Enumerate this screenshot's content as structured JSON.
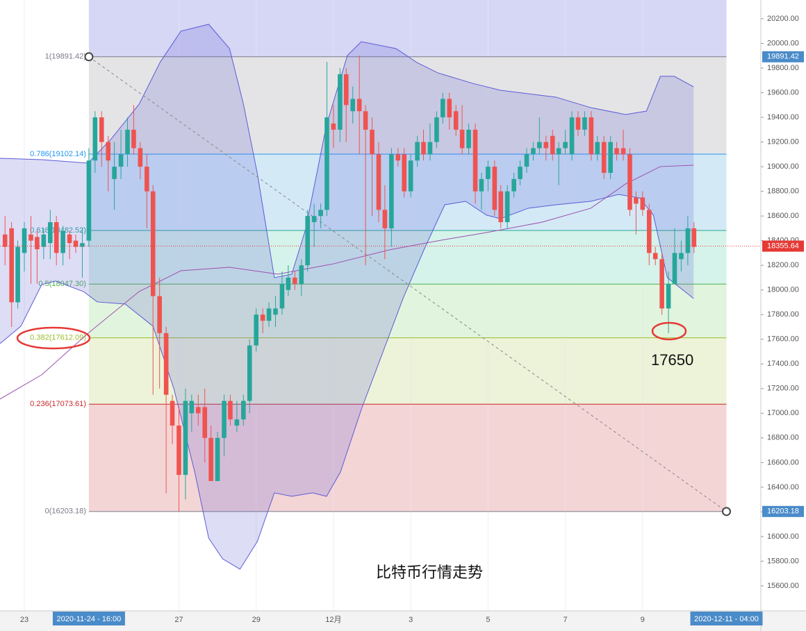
{
  "chart_data": {
    "type": "candlestick",
    "title": "比特币行情走势",
    "annotations": [
      {
        "text": "17650"
      }
    ],
    "xlim": [
      22.37,
      42.06
    ],
    "ylim": [
      15397,
      20352
    ],
    "grid": true,
    "up_color": "#26a69a",
    "down_color": "#ef5350",
    "xticks": [
      {
        "value": 23,
        "label": "23"
      },
      {
        "value": 27,
        "label": "27"
      },
      {
        "value": 29,
        "label": "29"
      },
      {
        "value": 31,
        "label": "12月"
      },
      {
        "value": 33,
        "label": "3"
      },
      {
        "value": 35,
        "label": "5"
      },
      {
        "value": 37,
        "label": "7"
      },
      {
        "value": 39,
        "label": "9"
      }
    ],
    "yticks": [
      {
        "value": 15600,
        "label": "15600.00"
      },
      {
        "value": 15800,
        "label": "15800.00"
      },
      {
        "value": 16000,
        "label": "16000.00"
      },
      {
        "value": 16200,
        "label": "16200.00"
      },
      {
        "value": 16400,
        "label": "16400.00"
      },
      {
        "value": 16600,
        "label": "16600.00"
      },
      {
        "value": 16800,
        "label": "16800.00"
      },
      {
        "value": 17000,
        "label": "17000.00"
      },
      {
        "value": 17200,
        "label": "17200.00"
      },
      {
        "value": 17400,
        "label": "17400.00"
      },
      {
        "value": 17600,
        "label": "17600.00"
      },
      {
        "value": 17800,
        "label": "17800.00"
      },
      {
        "value": 18000,
        "label": "18000.00"
      },
      {
        "value": 18200,
        "label": "18200.00"
      },
      {
        "value": 18400,
        "label": "18400.00"
      },
      {
        "value": 18600,
        "label": "18600.00"
      },
      {
        "value": 18800,
        "label": "18800.00"
      },
      {
        "value": 19000,
        "label": "19000.00"
      },
      {
        "value": 19200,
        "label": "19200.00"
      },
      {
        "value": 19400,
        "label": "19400.00"
      },
      {
        "value": 19600,
        "label": "19600.00"
      },
      {
        "value": 19800,
        "label": "19800.00"
      },
      {
        "value": 20000,
        "label": "20000.00"
      },
      {
        "value": 20200,
        "label": "20200.00"
      }
    ],
    "time_labels": [
      {
        "value": 24.67,
        "label": "2020-11-24 - 16:00"
      },
      {
        "value": 41.17,
        "label": "2020-12-11 - 04:00"
      }
    ],
    "price_labels": [
      {
        "value": 19891.42,
        "label": "19891.42",
        "color": "#4a8bc9"
      },
      {
        "value": 18355.64,
        "label": "18355.64",
        "color": "#e53935"
      },
      {
        "value": 16203.18,
        "label": "16203.18",
        "color": "#4a8bc9"
      }
    ],
    "current_price": 18355.64,
    "fib": {
      "x": [
        24.67,
        41.17
      ],
      "levels": [
        {
          "price": 19891.42,
          "label": "1(19891.42)",
          "color": "#787b86",
          "fill": "#d6d6f5"
        },
        {
          "price": 19102.14,
          "label": "0.786(19102.14)",
          "color": "#2196f3",
          "fill": "#e4e4e6"
        },
        {
          "price": 18482.52,
          "label": "0.618(18482.52)",
          "color": "#26a69a",
          "fill": "#d3e9f6"
        },
        {
          "price": 18047.3,
          "label": "0.5(18047.30)",
          "color": "#4caf50",
          "fill": "#d5f3ea"
        },
        {
          "price": 17612.09,
          "label": "0.382(17612.09)",
          "color": "#9bbc2a",
          "fill": "#e1f4dd"
        },
        {
          "price": 17073.61,
          "label": "0.236(17073.61)",
          "color": "#c62828",
          "fill": "#ecf3d8"
        },
        {
          "price": 16203.18,
          "label": "0(16203.18)",
          "color": "#787b86",
          "fill": "#f4d5d6"
        }
      ]
    },
    "bands": [
      {
        "color": "#5b5bd6",
        "x": [
          22.37,
          23.45,
          24.65,
          25.25,
          25.97,
          26.51,
          27.05,
          27.77,
          28.31,
          28.67,
          29.03,
          29.47,
          29.92,
          30.28,
          30.82,
          31.36,
          31.72,
          32.62,
          33.16,
          33.7,
          34.6,
          35.32,
          36.76,
          37.66,
          38.56,
          39.1,
          39.46,
          39.82,
          40.32
        ],
        "values": [
          19068,
          19057,
          19029,
          19226,
          19507,
          19845,
          20099,
          20155,
          19958,
          19507,
          18944,
          18100,
          18128,
          18494,
          19339,
          19902,
          20014,
          19958,
          19845,
          19761,
          19676,
          19620,
          19564,
          19479,
          19423,
          19451,
          19733,
          19733,
          19648
        ]
      },
      {
        "color": "#5b5bd6",
        "x": [
          22.37,
          22.91,
          23.45,
          23.81,
          24.53,
          24.89,
          25.61,
          26.33,
          26.87,
          27.41,
          27.77,
          28.13,
          28.58,
          29.03,
          29.47,
          29.92,
          30.46,
          30.82,
          31.18,
          31.72,
          32.26,
          32.8,
          33.34,
          33.88,
          34.42,
          34.96,
          35.32,
          36.04,
          36.76,
          37.66,
          38.38,
          38.92,
          39.28,
          39.64,
          40.32
        ],
        "values": [
          17565,
          17706,
          18044,
          18072,
          17987,
          17903,
          17886,
          17706,
          17199,
          16523,
          15988,
          15819,
          15735,
          15960,
          16354,
          16326,
          16354,
          16326,
          16523,
          17030,
          17480,
          17931,
          18325,
          18691,
          18719,
          18607,
          18578,
          18663,
          18691,
          18719,
          18775,
          18747,
          18607,
          18100,
          17931
        ]
      }
    ],
    "lines": [
      {
        "color": "#9c4fb0",
        "x": [
          22.37,
          23.45,
          24.65,
          25.97,
          27.05,
          28.31,
          29.56,
          31.0,
          32.44,
          33.88,
          34.96,
          36.4,
          37.66,
          38.56,
          39.46,
          40.32
        ],
        "values": [
          17115,
          17312,
          17649,
          17987,
          18156,
          18184,
          18128,
          18212,
          18325,
          18409,
          18466,
          18550,
          18663,
          18860,
          19001,
          19012
        ]
      }
    ],
    "x": [
      22.5,
      22.67,
      22.83,
      23,
      23.17,
      23.33,
      23.5,
      23.67,
      23.83,
      24,
      24.17,
      24.33,
      24.5,
      24.67,
      24.83,
      25,
      25.17,
      25.33,
      25.5,
      25.67,
      25.83,
      26,
      26.17,
      26.33,
      26.5,
      26.67,
      26.83,
      27,
      27.17,
      27.33,
      27.5,
      27.67,
      27.83,
      28,
      28.17,
      28.33,
      28.5,
      28.67,
      28.83,
      29,
      29.17,
      29.33,
      29.5,
      29.67,
      29.83,
      30,
      30.17,
      30.33,
      30.5,
      30.67,
      30.83,
      31,
      31.17,
      31.33,
      31.5,
      31.67,
      31.83,
      32,
      32.17,
      32.33,
      32.5,
      32.67,
      32.83,
      33,
      33.17,
      33.33,
      33.5,
      33.67,
      33.83,
      34,
      34.17,
      34.33,
      34.5,
      34.67,
      34.83,
      35,
      35.17,
      35.33,
      35.5,
      35.67,
      35.83,
      36,
      36.17,
      36.33,
      36.5,
      36.67,
      36.83,
      37,
      37.17,
      37.33,
      37.5,
      37.67,
      37.83,
      38,
      38.17,
      38.33,
      38.5,
      38.67,
      38.83,
      39,
      39.17,
      39.33,
      39.5,
      39.67,
      39.83,
      40,
      40.17,
      40.33
    ],
    "open": [
      18450,
      18500,
      17900,
      18300,
      18450,
      18430,
      18350,
      18380,
      18550,
      18300,
      18450,
      18400,
      18350,
      18400,
      19050,
      19400,
      19200,
      18900,
      19000,
      19100,
      19300,
      19150,
      19000,
      18800,
      17950,
      17650,
      17100,
      16900,
      16500,
      17000,
      17050,
      17050,
      16800,
      16450,
      16800,
      17100,
      16900,
      16950,
      17100,
      17550,
      17800,
      17750,
      17800,
      17850,
      18000,
      18100,
      18050,
      18200,
      18550,
      18600,
      18650,
      19350,
      19300,
      19750,
      19450,
      19550,
      19450,
      19300,
      19100,
      18650,
      18500,
      19100,
      19100,
      18800,
      19050,
      19200,
      19100,
      19200,
      19400,
      19550,
      19450,
      19300,
      19150,
      19300,
      18800,
      18900,
      19000,
      18800,
      18550,
      18800,
      18900,
      19000,
      19100,
      19150,
      19200,
      19250,
      19100,
      19150,
      19100,
      19400,
      19300,
      19400,
      19100,
      19200,
      18950,
      19150,
      19150,
      19100,
      18750,
      18750,
      18650,
      18300,
      18250,
      17850,
      18050,
      18250,
      18300,
      18500
    ],
    "high": [
      18600,
      18550,
      18400,
      18550,
      18600,
      18480,
      18500,
      18650,
      18600,
      18520,
      18480,
      18450,
      18500,
      19150,
      19450,
      19450,
      19250,
      19200,
      19300,
      19400,
      19500,
      19200,
      19100,
      18850,
      18100,
      17700,
      17150,
      17050,
      17200,
      17150,
      17150,
      17200,
      16900,
      16850,
      17150,
      17150,
      17100,
      17150,
      17600,
      17850,
      17850,
      17900,
      17950,
      18150,
      18200,
      18150,
      18250,
      18650,
      18700,
      18700,
      19850,
      19500,
      19800,
      19800,
      19650,
      19900,
      19500,
      19400,
      19200,
      18850,
      19150,
      19150,
      19150,
      19100,
      19250,
      19300,
      19350,
      19450,
      19600,
      19600,
      19500,
      19500,
      19350,
      19350,
      18950,
      19050,
      19050,
      18850,
      18850,
      18950,
      19050,
      19150,
      19200,
      19400,
      19250,
      19300,
      19200,
      19300,
      19450,
      19450,
      19450,
      19450,
      19250,
      19250,
      19250,
      19200,
      19300,
      19150,
      18800,
      18800,
      18700,
      18350,
      18300,
      18150,
      18500,
      18400,
      18600,
      18550
    ],
    "low": [
      18200,
      17700,
      17850,
      18150,
      18050,
      18050,
      18250,
      18250,
      18200,
      18200,
      18250,
      18300,
      18100,
      18350,
      18950,
      19000,
      18800,
      18650,
      18900,
      19000,
      19100,
      18900,
      18500,
      17150,
      17200,
      16350,
      16750,
      16200,
      16300,
      16850,
      16900,
      16600,
      16450,
      16450,
      16650,
      16900,
      16850,
      16900,
      17000,
      17500,
      17650,
      17700,
      17700,
      17800,
      17950,
      18000,
      17950,
      18150,
      18350,
      18500,
      18600,
      19150,
      19200,
      19200,
      19350,
      19100,
      18200,
      18600,
      18550,
      18250,
      18350,
      19000,
      18750,
      18750,
      19000,
      19050,
      19050,
      19150,
      19350,
      19300,
      19250,
      19100,
      19100,
      18700,
      18650,
      18800,
      18600,
      18500,
      18500,
      18750,
      18850,
      18950,
      19050,
      19100,
      19050,
      19050,
      18850,
      19100,
      19050,
      19250,
      19250,
      19050,
      19050,
      18900,
      18900,
      19050,
      19050,
      18600,
      18450,
      18600,
      18200,
      18200,
      17800,
      17650,
      18050,
      18150,
      18200,
      18300
    ],
    "close": [
      18350,
      17900,
      18350,
      18500,
      18400,
      18330,
      18450,
      18550,
      18300,
      18480,
      18380,
      18350,
      18380,
      19050,
      19400,
      19200,
      19050,
      19000,
      19100,
      19300,
      19150,
      19000,
      18800,
      17950,
      17650,
      17150,
      16900,
      16500,
      17100,
      17100,
      17000,
      16800,
      16450,
      16800,
      17100,
      16950,
      16950,
      17100,
      17550,
      17800,
      17750,
      17850,
      17850,
      18050,
      18100,
      18050,
      18200,
      18600,
      18600,
      18650,
      19400,
      19300,
      19750,
      19500,
      19550,
      19450,
      19300,
      19100,
      18650,
      18500,
      19100,
      19050,
      18800,
      19050,
      19200,
      19100,
      19200,
      19400,
      19550,
      19400,
      19300,
      19150,
      19300,
      18800,
      18900,
      19000,
      18650,
      18550,
      18800,
      18900,
      19000,
      19100,
      19150,
      19200,
      19150,
      19100,
      19150,
      19200,
      19400,
      19300,
      19400,
      19100,
      19200,
      18950,
      19200,
      19100,
      19100,
      18650,
      18700,
      18650,
      18300,
      18250,
      17850,
      18050,
      18300,
      18300,
      18500,
      18350
    ]
  }
}
